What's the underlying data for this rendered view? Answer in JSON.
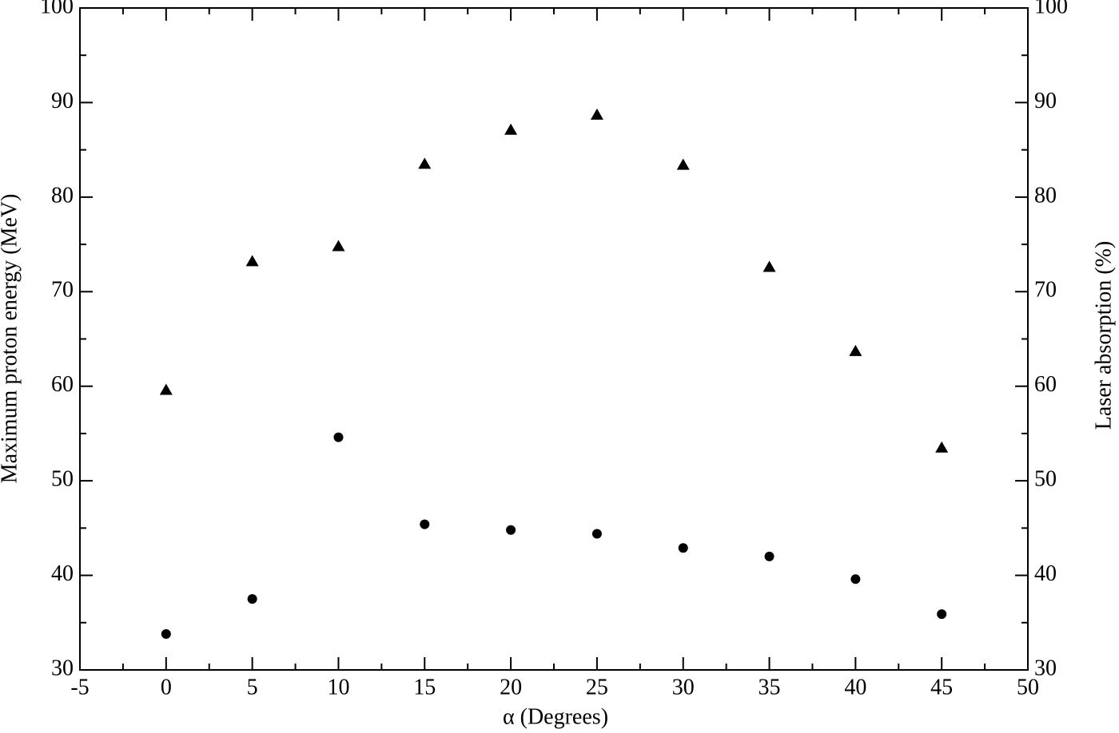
{
  "chart_data": {
    "type": "scatter",
    "x_label": "α (Degrees)",
    "y_label": "Maximum proton energy (MeV)",
    "y2_label": "Laser absorption (%)",
    "xlim": [
      -5,
      50
    ],
    "xticks": [
      -5,
      0,
      5,
      10,
      15,
      20,
      25,
      30,
      35,
      40,
      45,
      50
    ],
    "xminorticks": [
      -2.5,
      2.5,
      7.5,
      12.5,
      17.5,
      22.5,
      27.5,
      32.5,
      37.5,
      42.5,
      47.5
    ],
    "ylim": [
      30,
      100
    ],
    "yticks": [
      30,
      40,
      50,
      60,
      70,
      80,
      90,
      100
    ],
    "yminorticks": [
      35,
      45,
      55,
      65,
      75,
      85,
      95
    ],
    "y2lim": [
      30,
      100
    ],
    "y2ticks": [
      30,
      40,
      50,
      60,
      70,
      80,
      90,
      100
    ],
    "x": [
      0,
      5,
      10,
      15,
      20,
      25,
      30,
      35,
      40,
      45
    ],
    "series": [
      {
        "marker": "circle",
        "color": "#000000",
        "values": [
          33.8,
          37.5,
          54.6,
          45.4,
          44.8,
          44.4,
          42.9,
          42.0,
          39.6,
          35.9
        ]
      },
      {
        "marker": "triangle",
        "color": "#000000",
        "axis": "y2",
        "values": [
          59.6,
          73.2,
          74.8,
          83.5,
          87.1,
          88.7,
          83.4,
          72.6,
          63.7,
          53.5
        ]
      }
    ]
  }
}
